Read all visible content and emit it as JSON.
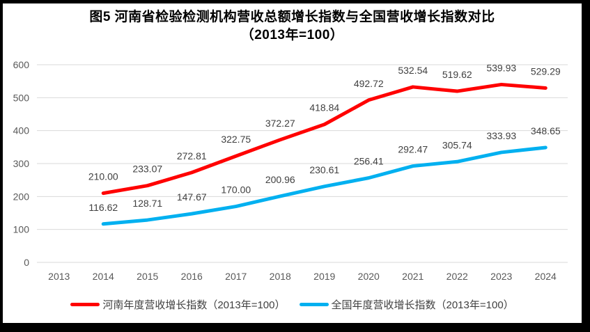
{
  "title": {
    "line1": "图5  河南省检验检测机构营收总额增长指数与全国营收增长指数对比",
    "line2": "（2013年=100）"
  },
  "chart_data": {
    "type": "line",
    "title": "图5 河南省检验检测机构营收总额增长指数与全国营收增长指数对比（2013年=100）",
    "categories": [
      2013,
      2014,
      2015,
      2016,
      2017,
      2018,
      2019,
      2020,
      2021,
      2022,
      2023,
      2024
    ],
    "series": [
      {
        "name": "河南年度营收增长指数（2013年=100）",
        "color": "#FF0000",
        "values": [
          null,
          210.0,
          233.07,
          272.81,
          322.75,
          372.27,
          418.84,
          492.72,
          532.54,
          519.62,
          539.93,
          529.29
        ]
      },
      {
        "name": "全国年度营收增长指数（2013年=100）",
        "color": "#00B0F0",
        "values": [
          null,
          116.62,
          128.71,
          147.67,
          170.0,
          200.96,
          230.61,
          256.41,
          292.47,
          305.74,
          333.93,
          348.65
        ]
      }
    ],
    "ylim": [
      0,
      600
    ],
    "ytick_step": 100,
    "ytick_labels": [
      "0",
      "100",
      "200",
      "300",
      "400",
      "500",
      "600"
    ],
    "grid": true,
    "data_labels": true,
    "data_label_decimals": 2,
    "legend_position": "bottom"
  },
  "colors": {
    "background": "#FFFFFF",
    "border": "#000000",
    "grid": "#D9D9D9",
    "axis_text": "#595959",
    "data_label_text": "#404040",
    "legend_text": "#404040",
    "title_text": "#000000"
  }
}
